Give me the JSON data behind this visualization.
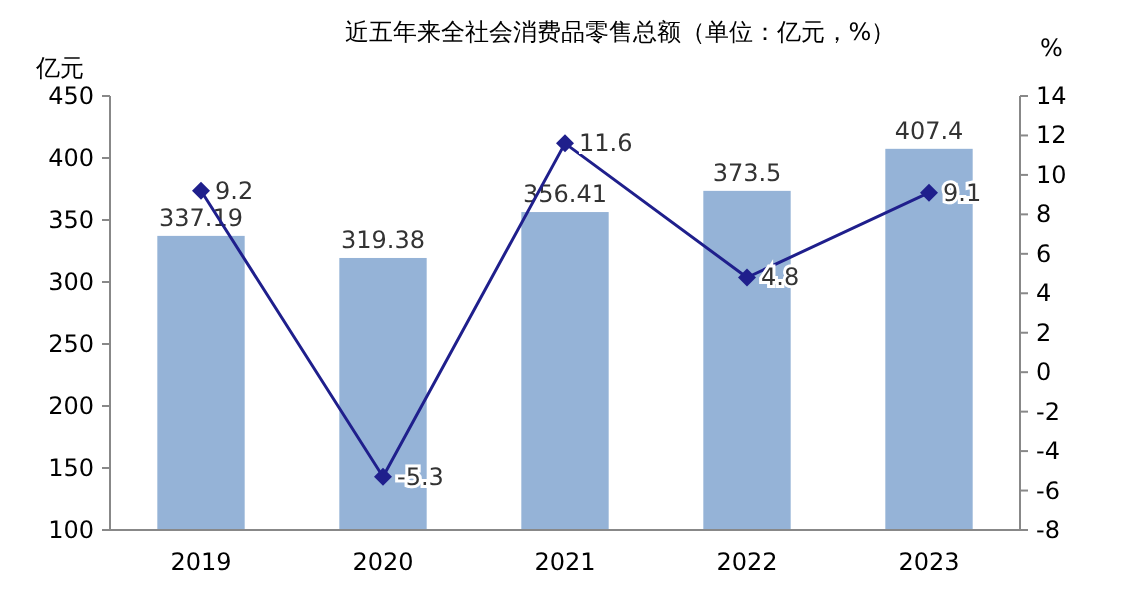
{
  "chart_data": {
    "type": "bar",
    "title": "近五年来全社会消费品零售总额（单位：亿元，%）",
    "ylabel": "亿元",
    "y2label": "%",
    "categories": [
      "2019",
      "2020",
      "2021",
      "2022",
      "2023"
    ],
    "series": [
      {
        "color": "#95b3d7",
        "values": [
          337.19,
          319.38,
          356.41,
          373.5,
          407.4
        ]
      },
      {
        "type": "line",
        "axis": "y2",
        "color": "#1f1f8c",
        "values": [
          9.2,
          -5.3,
          11.6,
          4.8,
          9.1
        ]
      }
    ],
    "ylim": [
      100,
      450
    ],
    "yticks": [
      100,
      150,
      200,
      250,
      300,
      350,
      400,
      450
    ],
    "y2lim": [
      -8,
      14
    ],
    "y2ticks": [
      -8,
      -6,
      -4,
      -2,
      0,
      2,
      4,
      6,
      8,
      10,
      12,
      14
    ],
    "data_labels": true,
    "marker": "diamond",
    "grid": false
  }
}
